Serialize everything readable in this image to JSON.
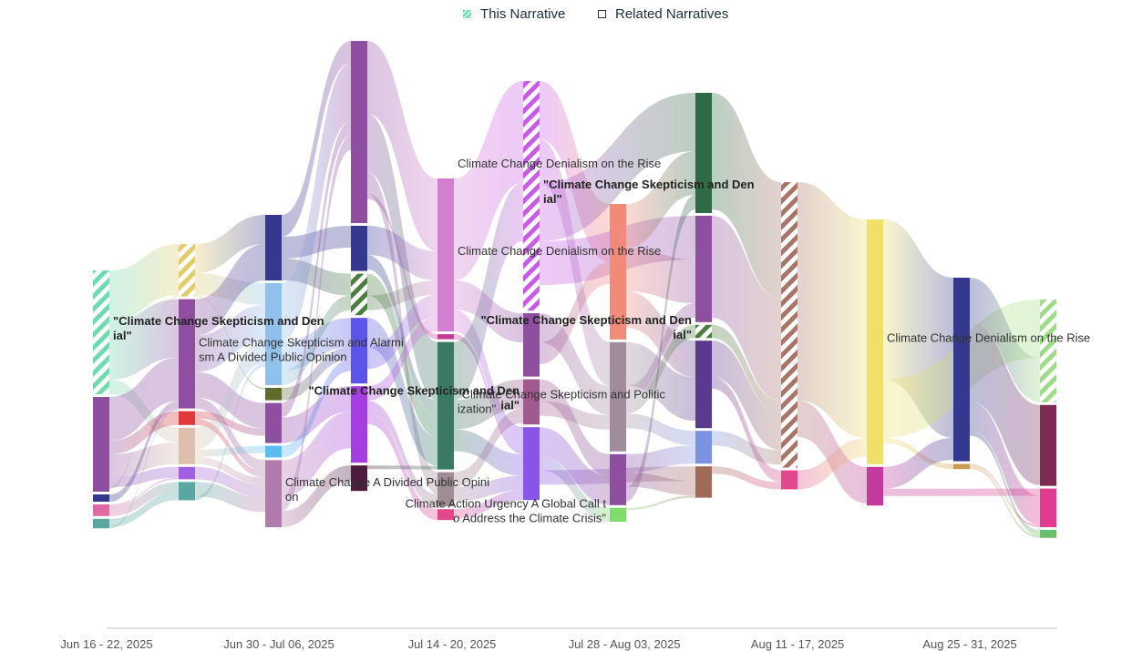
{
  "legend": {
    "this_label": "This Narrative",
    "related_label": "Related Narratives"
  },
  "chart_data": {
    "type": "sankey",
    "x_ticks": [
      "Jun 16 - 22, 2025",
      "Jun 30 - Jul 06, 2025",
      "Jul 14 - 20, 2025",
      "Jul 28 - Aug 03, 2025",
      "Aug 11 - 17, 2025",
      "Aug 25 - 31, 2025"
    ],
    "columns": [
      {
        "nodes": [
          {
            "id": "c0n0",
            "color": "#6fdcb0",
            "hatch": true,
            "value": 17,
            "this": true
          },
          {
            "id": "c0n1",
            "color": "#8e4fa0",
            "value": 13
          },
          {
            "id": "c0n2",
            "color": "#34388e",
            "value": 1
          },
          {
            "id": "c0n3",
            "color": "#e06aa6",
            "value": 1.6
          },
          {
            "id": "c0n4",
            "color": "#5aa6a0",
            "value": 1.3
          }
        ]
      },
      {
        "nodes": [
          {
            "id": "c1n0",
            "color": "#e2cc6a",
            "hatch": true,
            "value": 7.2,
            "this": true
          },
          {
            "id": "c1n1",
            "color": "#8e4fa0",
            "value": 15
          },
          {
            "id": "c1n2",
            "color": "#e23a3a",
            "value": 1.9
          },
          {
            "id": "c1n3",
            "color": "#dcc0ac",
            "value": 5
          },
          {
            "id": "c1n4",
            "color": "#a061e0",
            "value": 1.7
          },
          {
            "id": "c1n5",
            "color": "#5aa6a0",
            "value": 2.5
          }
        ]
      },
      {
        "nodes": [
          {
            "id": "c2n0",
            "color": "#34388e",
            "value": 9
          },
          {
            "id": "c2n1",
            "color": "#8fc1ec",
            "value": 14
          },
          {
            "id": "c2n2",
            "color": "#5e6b2a",
            "value": 1.7
          },
          {
            "id": "c2n3",
            "color": "#8e4fa0",
            "value": 5.5
          },
          {
            "id": "c2n4",
            "color": "#5bbcf0",
            "value": 1.6
          },
          {
            "id": "c2n5",
            "color": "#b07aac",
            "value": 9.2
          }
        ]
      },
      {
        "nodes": [
          {
            "id": "c3n0",
            "color": "#8e4fa0",
            "value": 25
          },
          {
            "id": "c3n1",
            "color": "#34388e",
            "value": 6.2
          },
          {
            "id": "c3n2",
            "color": "#4a7e3e",
            "hatch": true,
            "value": 5.7,
            "this": true
          },
          {
            "id": "c3n3",
            "color": "#5a55e8",
            "value": 9
          },
          {
            "id": "c3n4",
            "color": "#a33ee0",
            "value": 10.5
          },
          {
            "id": "c3n5",
            "color": "#4f1a40",
            "value": 3.5
          }
        ]
      },
      {
        "nodes": [
          {
            "id": "c4n0",
            "color": "#d37fd0",
            "value": 21
          },
          {
            "id": "c4n1",
            "color": "#c23a94",
            "value": 0.7
          },
          {
            "id": "c4n2",
            "color": "#3a7a62",
            "value": 17.5
          },
          {
            "id": "c4n3",
            "color": "#a08c94",
            "value": 4.7
          },
          {
            "id": "c4n4",
            "color": "#e04a8c",
            "value": 1.5
          }
        ]
      },
      {
        "nodes": [
          {
            "id": "c5n0",
            "color": "#c85ce8",
            "hatch": true,
            "value": 31.5,
            "this": true
          },
          {
            "id": "c5n1",
            "color": "#8e4fa0",
            "value": 8.7
          },
          {
            "id": "c5n2",
            "color": "#a05a90",
            "value": 6.2
          },
          {
            "id": "c5n3",
            "color": "#8855e8",
            "value": 10
          }
        ]
      },
      {
        "nodes": [
          {
            "id": "c6n0",
            "color": "#f28a7a",
            "value": 18.6
          },
          {
            "id": "c6n1",
            "color": "#a08c9c",
            "value": 15
          },
          {
            "id": "c6n2",
            "color": "#8e4fa0",
            "value": 7
          },
          {
            "id": "c6n3",
            "color": "#7ddc6a",
            "value": 1.9
          }
        ]
      },
      {
        "nodes": [
          {
            "id": "c7n0",
            "color": "#2e6b45",
            "value": 16.5
          },
          {
            "id": "c7n1",
            "color": "#8e4fa0",
            "value": 14.6
          },
          {
            "id": "c7n2",
            "color": "#4a7e3e",
            "hatch": true,
            "value": 1.8,
            "this": true
          },
          {
            "id": "c7n3",
            "color": "#5a3a8e",
            "value": 12
          },
          {
            "id": "c7n4",
            "color": "#7b92e0",
            "value": 4.5
          },
          {
            "id": "c7n5",
            "color": "#a06a58",
            "value": 4.3
          }
        ]
      },
      {
        "nodes": [
          {
            "id": "c8n0",
            "color": "#a87568",
            "hatch": true,
            "value": 39.2,
            "this": true
          },
          {
            "id": "c8n1",
            "color": "#e04a8c",
            "value": 2.6
          }
        ]
      },
      {
        "nodes": [
          {
            "id": "c9n0",
            "color": "#f0e06a",
            "value": 33.6
          },
          {
            "id": "c9n1",
            "color": "#c23a9c",
            "value": 5.3
          }
        ]
      },
      {
        "nodes": [
          {
            "id": "c10n0",
            "color": "#34388e",
            "value": 25.2
          },
          {
            "id": "c10n1",
            "color": "#c99a50",
            "value": 0.7
          }
        ]
      },
      {
        "nodes": [
          {
            "id": "c11n0",
            "color": "#9edc8a",
            "hatch": true,
            "value": 14.1,
            "this": true
          },
          {
            "id": "c11n1",
            "color": "#7e2a52",
            "value": 11.1
          },
          {
            "id": "c11n2",
            "color": "#e23a8e",
            "value": 5.3
          },
          {
            "id": "c11n3",
            "color": "#6abf6a",
            "value": 1.1
          }
        ]
      }
    ],
    "links": [
      {
        "s": "c0n0",
        "t": "c1n0",
        "v": 7
      },
      {
        "s": "c0n0",
        "t": "c1n1",
        "v": 8
      },
      {
        "s": "c0n0",
        "t": "c1n3",
        "v": 2
      },
      {
        "s": "c0n1",
        "t": "c1n1",
        "v": 6
      },
      {
        "s": "c0n1",
        "t": "c1n2",
        "v": 1.9
      },
      {
        "s": "c0n1",
        "t": "c1n3",
        "v": 3
      },
      {
        "s": "c0n1",
        "t": "c1n4",
        "v": 1.5
      },
      {
        "s": "c0n1",
        "t": "c1n0",
        "v": 0.2
      },
      {
        "s": "c0n2",
        "t": "c1n1",
        "v": 1
      },
      {
        "s": "c0n3",
        "t": "c1n4",
        "v": 0.2
      },
      {
        "s": "c0n3",
        "t": "c1n5",
        "v": 1.4
      },
      {
        "s": "c0n4",
        "t": "c1n5",
        "v": 1.1
      },
      {
        "s": "c0n4",
        "t": "c1n1",
        "v": 0.2
      },
      {
        "s": "c1n0",
        "t": "c2n0",
        "v": 4
      },
      {
        "s": "c1n0",
        "t": "c2n1",
        "v": 3
      },
      {
        "s": "c1n0",
        "t": "c2n2",
        "v": 0.2
      },
      {
        "s": "c1n1",
        "t": "c2n0",
        "v": 5
      },
      {
        "s": "c1n1",
        "t": "c2n1",
        "v": 5
      },
      {
        "s": "c1n1",
        "t": "c2n3",
        "v": 3.5
      },
      {
        "s": "c1n1",
        "t": "c2n5",
        "v": 1.5
      },
      {
        "s": "c1n2",
        "t": "c2n3",
        "v": 1
      },
      {
        "s": "c1n2",
        "t": "c2n5",
        "v": 0.9
      },
      {
        "s": "c1n3",
        "t": "c2n1",
        "v": 3
      },
      {
        "s": "c1n3",
        "t": "c2n4",
        "v": 1
      },
      {
        "s": "c1n3",
        "t": "c2n5",
        "v": 1
      },
      {
        "s": "c1n4",
        "t": "c2n5",
        "v": 1.7
      },
      {
        "s": "c1n5",
        "t": "c2n5",
        "v": 2
      },
      {
        "s": "c1n5",
        "t": "c2n1",
        "v": 0.5
      },
      {
        "s": "c2n0",
        "t": "c3n0",
        "v": 3
      },
      {
        "s": "c2n0",
        "t": "c3n1",
        "v": 3
      },
      {
        "s": "c2n0",
        "t": "c3n2",
        "v": 3
      },
      {
        "s": "c2n1",
        "t": "c3n0",
        "v": 8
      },
      {
        "s": "c2n1",
        "t": "c3n3",
        "v": 4
      },
      {
        "s": "c2n1",
        "t": "c3n2",
        "v": 2
      },
      {
        "s": "c2n2",
        "t": "c3n3",
        "v": 1.7
      },
      {
        "s": "c2n3",
        "t": "c3n0",
        "v": 2
      },
      {
        "s": "c2n3",
        "t": "c3n4",
        "v": 3.5
      },
      {
        "s": "c2n4",
        "t": "c3n3",
        "v": 1.6
      },
      {
        "s": "c2n5",
        "t": "c3n4",
        "v": 5
      },
      {
        "s": "c2n5",
        "t": "c3n0",
        "v": 2
      },
      {
        "s": "c2n5",
        "t": "c3n5",
        "v": 2.2
      },
      {
        "s": "c3n0",
        "t": "c4n0",
        "v": 10
      },
      {
        "s": "c3n0",
        "t": "c4n2",
        "v": 8
      },
      {
        "s": "c3n0",
        "t": "c4n3",
        "v": 3
      },
      {
        "s": "c3n0",
        "t": "c4n1",
        "v": 0.7
      },
      {
        "s": "c3n1",
        "t": "c4n0",
        "v": 4
      },
      {
        "s": "c3n1",
        "t": "c4n2",
        "v": 2
      },
      {
        "s": "c3n2",
        "t": "c4n2",
        "v": 3
      },
      {
        "s": "c3n2",
        "t": "c4n0",
        "v": 2
      },
      {
        "s": "c3n3",
        "t": "c4n2",
        "v": 4
      },
      {
        "s": "c3n3",
        "t": "c4n0",
        "v": 3
      },
      {
        "s": "c3n4",
        "t": "c4n0",
        "v": 2
      },
      {
        "s": "c3n4",
        "t": "c4n3",
        "v": 1.7
      },
      {
        "s": "c3n4",
        "t": "c4n4",
        "v": 1.5
      },
      {
        "s": "c3n5",
        "t": "c4n2",
        "v": 0.5
      },
      {
        "s": "c4n0",
        "t": "c5n0",
        "v": 14
      },
      {
        "s": "c4n0",
        "t": "c5n1",
        "v": 4
      },
      {
        "s": "c4n0",
        "t": "c5n3",
        "v": 3
      },
      {
        "s": "c4n1",
        "t": "c5n3",
        "v": 0.7
      },
      {
        "s": "c4n2",
        "t": "c5n0",
        "v": 8
      },
      {
        "s": "c4n2",
        "t": "c5n2",
        "v": 4
      },
      {
        "s": "c4n2",
        "t": "c5n3",
        "v": 3
      },
      {
        "s": "c4n3",
        "t": "c5n2",
        "v": 2
      },
      {
        "s": "c4n3",
        "t": "c5n3",
        "v": 2
      },
      {
        "s": "c4n4",
        "t": "c5n3",
        "v": 1.3
      },
      {
        "s": "c5n0",
        "t": "c6n0",
        "v": 8
      },
      {
        "s": "c5n0",
        "t": "c6n1",
        "v": 6
      },
      {
        "s": "c5n0",
        "t": "c7n0",
        "v": 8
      },
      {
        "s": "c5n0",
        "t": "c7n1",
        "v": 6
      },
      {
        "s": "c5n1",
        "t": "c6n1",
        "v": 4
      },
      {
        "s": "c5n1",
        "t": "c6n0",
        "v": 3
      },
      {
        "s": "c5n2",
        "t": "c6n2",
        "v": 3
      },
      {
        "s": "c5n2",
        "t": "c6n1",
        "v": 2
      },
      {
        "s": "c5n3",
        "t": "c6n2",
        "v": 4
      },
      {
        "s": "c5n3",
        "t": "c6n3",
        "v": 1.9
      },
      {
        "s": "c5n3",
        "t": "c7n5",
        "v": 2
      },
      {
        "s": "c6n0",
        "t": "c7n0",
        "v": 6
      },
      {
        "s": "c6n0",
        "t": "c7n1",
        "v": 6
      },
      {
        "s": "c6n0",
        "t": "c7n3",
        "v": 5
      },
      {
        "s": "c6n1",
        "t": "c7n3",
        "v": 6
      },
      {
        "s": "c6n1",
        "t": "c7n1",
        "v": 2
      },
      {
        "s": "c6n1",
        "t": "c7n2",
        "v": 1.8
      },
      {
        "s": "c6n1",
        "t": "c7n4",
        "v": 2
      },
      {
        "s": "c6n2",
        "t": "c7n4",
        "v": 2.5
      },
      {
        "s": "c6n2",
        "t": "c7n5",
        "v": 2
      },
      {
        "s": "c6n2",
        "t": "c7n0",
        "v": 2
      },
      {
        "s": "c6n3",
        "t": "c7n5",
        "v": 0.3
      },
      {
        "s": "c7n0",
        "t": "c8n0",
        "v": 16
      },
      {
        "s": "c7n1",
        "t": "c8n0",
        "v": 14
      },
      {
        "s": "c7n2",
        "t": "c8n0",
        "v": 1.8
      },
      {
        "s": "c7n3",
        "t": "c8n0",
        "v": 5
      },
      {
        "s": "c7n3",
        "t": "c8n1",
        "v": 1.6
      },
      {
        "s": "c7n4",
        "t": "c8n0",
        "v": 2
      },
      {
        "s": "c7n5",
        "t": "c8n1",
        "v": 1
      },
      {
        "s": "c8n0",
        "t": "c9n0",
        "v": 30
      },
      {
        "s": "c8n0",
        "t": "c9n1",
        "v": 5
      },
      {
        "s": "c8n1",
        "t": "c9n0",
        "v": 2.6
      },
      {
        "s": "c9n0",
        "t": "c10n0",
        "v": 22
      },
      {
        "s": "c9n0",
        "t": "c11n0",
        "v": 8
      },
      {
        "s": "c9n0",
        "t": "c10n1",
        "v": 0.7
      },
      {
        "s": "c9n1",
        "t": "c10n0",
        "v": 3
      },
      {
        "s": "c9n1",
        "t": "c11n2",
        "v": 1
      },
      {
        "s": "c10n0",
        "t": "c11n0",
        "v": 6
      },
      {
        "s": "c10n0",
        "t": "c11n1",
        "v": 11
      },
      {
        "s": "c10n0",
        "t": "c11n2",
        "v": 4
      },
      {
        "s": "c10n0",
        "t": "c11n3",
        "v": 0.7
      },
      {
        "s": "c10n1",
        "t": "c11n2",
        "v": 0.3
      },
      {
        "s": "c10n1",
        "t": "c11n3",
        "v": 0.4
      }
    ],
    "labels": [
      {
        "node": "c0n0",
        "lines": [
          "\"Climate Change Skepticism and Den",
          "ial\""
        ],
        "bold": true
      },
      {
        "node": "c1n1",
        "lines": [
          "Climate Change Skepticism and Alarmi",
          "sm A Divided Public Opinion"
        ]
      },
      {
        "node": "c2n5",
        "lines": [
          "Climate Change A Divided Public Opini",
          "on"
        ]
      },
      {
        "node": "c4n0",
        "lines": [
          "Climate Change Denialism on the Rise"
        ]
      },
      {
        "node": "c4n2",
        "lines": [
          "\"Climate Change Skepticism and Politic",
          "ization\""
        ]
      },
      {
        "node": "c4n0",
        "lines": [
          "Climate Change Denialism on the Rise"
        ],
        "pos": "top"
      },
      {
        "node": "c5n0",
        "lines": [
          "\"Climate Change Skepticism and Den",
          "ial\""
        ],
        "bold": true
      },
      {
        "node": "c5n2",
        "lines": [
          "\"Climate Change Skepticism and Den",
          "ial\""
        ],
        "bold": true,
        "side": "left"
      },
      {
        "node": "c6n3",
        "lines": [
          "Climate Action Urgency A Global Call t",
          "o Address the Climate Crisis\""
        ],
        "side": "left"
      },
      {
        "node": "c7n2",
        "lines": [
          "\"Climate Change Skepticism and Den",
          "ial\""
        ],
        "bold": true,
        "side": "left"
      },
      {
        "node": "c9n0",
        "lines": [
          "Climate Change Denialism on the Rise"
        ]
      }
    ]
  }
}
